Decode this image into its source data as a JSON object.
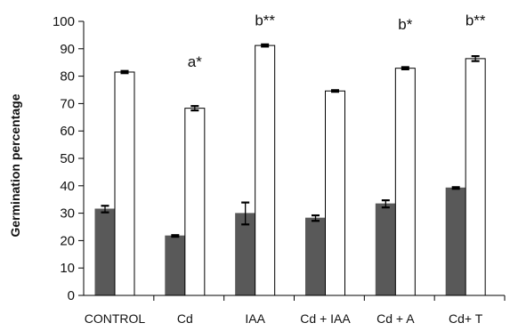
{
  "chart_data": {
    "type": "bar",
    "title": "",
    "xlabel": "",
    "ylabel": "Germination percentage",
    "ylim": [
      0,
      100
    ],
    "yticks": [
      0,
      10,
      20,
      30,
      40,
      50,
      60,
      70,
      80,
      90,
      100
    ],
    "grid": false,
    "legend": "none",
    "categories": [
      "CONTROL",
      "Cd",
      "IAA",
      "Cd + IAA",
      "Cd + A",
      "Cd+ T"
    ],
    "series": [
      {
        "color": "#595959",
        "values": [
          31.5,
          21.7,
          29.9,
          28.2,
          33.4,
          39.2
        ],
        "errors": [
          1.2,
          0.3,
          4.0,
          1.0,
          1.3,
          0.3
        ]
      },
      {
        "color": "#ffffff",
        "values": [
          81.5,
          68.3,
          91.2,
          74.6,
          82.9,
          86.4
        ],
        "errors": [
          0.4,
          0.8,
          0.4,
          0.3,
          0.4,
          0.9
        ]
      }
    ],
    "annotations": [
      {
        "category": "Cd",
        "text": "a*",
        "y": 83.5
      },
      {
        "category": "IAA",
        "text": "b**",
        "y": 98.5
      },
      {
        "category": "Cd + A",
        "text": "b*",
        "y": 97.0
      },
      {
        "category": "Cd+ T",
        "text": "b**",
        "y": 98.5
      }
    ]
  }
}
